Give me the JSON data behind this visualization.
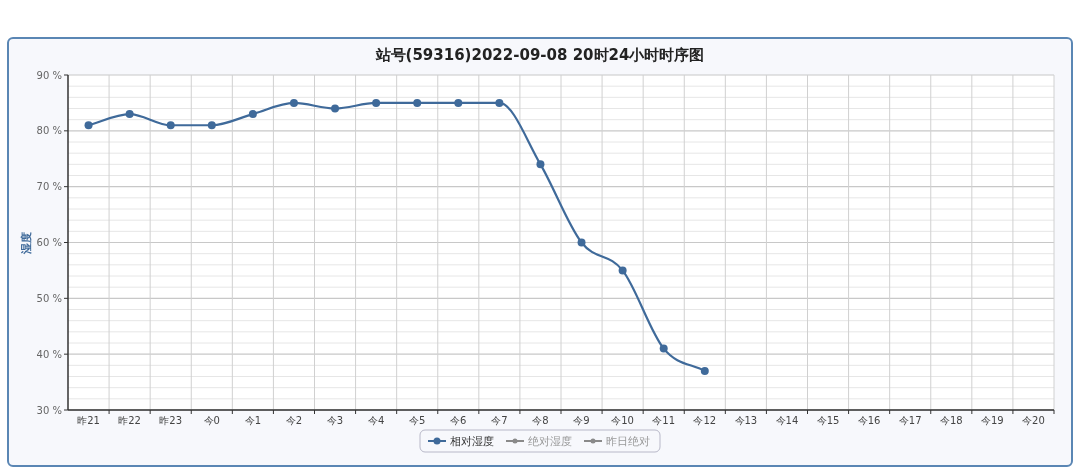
{
  "chart_data": {
    "type": "line",
    "title": "站号(59316)2022-09-08 20时24小时时序图",
    "ylabel": "湿度",
    "categories": [
      "昨21",
      "昨22",
      "昨23",
      "今0",
      "今1",
      "今2",
      "今3",
      "今4",
      "今5",
      "今6",
      "今7",
      "今8",
      "今9",
      "今10",
      "今11",
      "今12",
      "今13",
      "今14",
      "今15",
      "今16",
      "今17",
      "今18",
      "今19",
      "今20"
    ],
    "series": [
      {
        "name": "相对湿度",
        "color": "#3f6a9a",
        "values": [
          81,
          83,
          81,
          81,
          83,
          85,
          84,
          85,
          85,
          85,
          85,
          74,
          60,
          55,
          41,
          37,
          null,
          null,
          null,
          null,
          null,
          null,
          null,
          null
        ]
      },
      {
        "name": "绝对湿度",
        "color": "#8a8a8a",
        "values": [
          null,
          null,
          null,
          null,
          null,
          null,
          null,
          null,
          null,
          null,
          null,
          null,
          null,
          null,
          null,
          null,
          null,
          null,
          null,
          null,
          null,
          null,
          null,
          null
        ]
      },
      {
        "name": "昨日绝对",
        "color": "#8a8a8a",
        "values": [
          null,
          null,
          null,
          null,
          null,
          null,
          null,
          null,
          null,
          null,
          null,
          null,
          null,
          null,
          null,
          null,
          null,
          null,
          null,
          null,
          null,
          null,
          null,
          null
        ]
      }
    ],
    "ylim": [
      30,
      90
    ],
    "yticks": [
      {
        "value": 30,
        "label": "30 %"
      },
      {
        "value": 40,
        "label": "40 %"
      },
      {
        "value": 50,
        "label": "50 %"
      },
      {
        "value": 60,
        "label": "60 %"
      },
      {
        "value": 70,
        "label": "70 %"
      },
      {
        "value": 80,
        "label": "80 %"
      },
      {
        "value": 90,
        "label": "90 %"
      }
    ],
    "grid": true,
    "legend": "bottom",
    "marker": "circle",
    "line_style": "solid"
  }
}
